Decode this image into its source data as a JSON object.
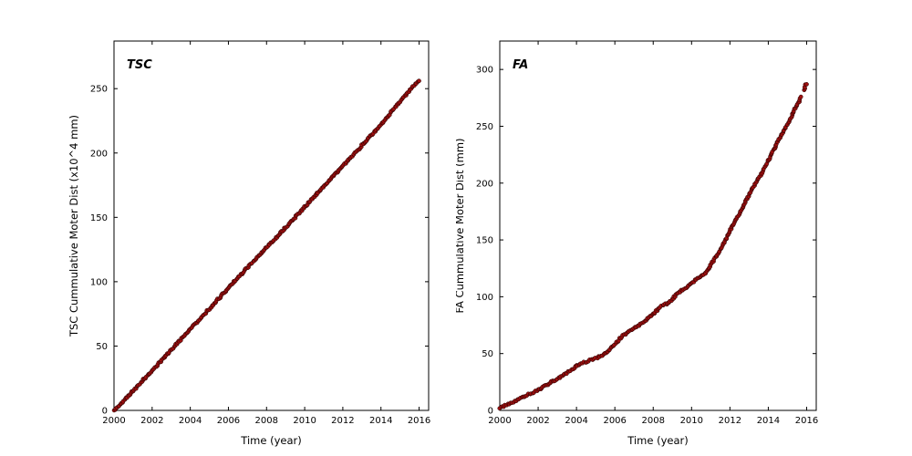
{
  "figure": {
    "background": "#ffffff",
    "marker_color": "#a01010",
    "marker_edge_color": "#200000",
    "axis_color": "#000000"
  },
  "chart_data": [
    {
      "type": "scatter",
      "title": "TSC",
      "xlabel": "Time (year)",
      "ylabel": "TSC Cummulative Moter Dist (x10^4 mm)",
      "xlim": [
        2000,
        2016.5
      ],
      "ylim": [
        0,
        287
      ],
      "xticks": [
        2000,
        2002,
        2004,
        2006,
        2008,
        2010,
        2012,
        2014,
        2016
      ],
      "yticks": [
        0,
        50,
        100,
        150,
        200,
        250
      ],
      "grid": false,
      "legend": null,
      "series": [
        {
          "name": "TSC cumulative motor distance",
          "segments": [
            [
              [
                2000.0,
                0
              ],
              [
                2000.5,
                7
              ],
              [
                2001.0,
                15
              ],
              [
                2001.5,
                23
              ],
              [
                2002.0,
                31
              ],
              [
                2002.5,
                39
              ],
              [
                2003.0,
                47
              ],
              [
                2003.5,
                55
              ],
              [
                2004.0,
                63
              ],
              [
                2004.5,
                71
              ],
              [
                2005.0,
                79
              ],
              [
                2005.5,
                87
              ],
              [
                2006.0,
                95
              ],
              [
                2006.5,
                103
              ],
              [
                2007.0,
                111
              ],
              [
                2007.5,
                119
              ],
              [
                2008.0,
                127
              ],
              [
                2008.5,
                134
              ],
              [
                2009.0,
                142
              ],
              [
                2009.5,
                150
              ],
              [
                2010.0,
                158
              ],
              [
                2010.5,
                166
              ],
              [
                2011.0,
                174
              ],
              [
                2011.5,
                182
              ],
              [
                2012.0,
                190
              ],
              [
                2012.5,
                198
              ],
              [
                2013.0,
                206
              ],
              [
                2013.5,
                214
              ],
              [
                2014.0,
                222
              ],
              [
                2014.5,
                231
              ],
              [
                2015.0,
                240
              ],
              [
                2015.5,
                249
              ],
              [
                2015.9,
                255
              ],
              [
                2016.0,
                256
              ]
            ]
          ]
        }
      ]
    },
    {
      "type": "scatter",
      "title": "FA",
      "xlabel": "Time (year)",
      "ylabel": "FA Cummulative Moter Dist (mm)",
      "xlim": [
        2000,
        2016.5
      ],
      "ylim": [
        0,
        325
      ],
      "xticks": [
        2000,
        2002,
        2004,
        2006,
        2008,
        2010,
        2012,
        2014,
        2016
      ],
      "yticks": [
        0,
        50,
        100,
        150,
        200,
        250,
        300
      ],
      "grid": false,
      "legend": null,
      "series": [
        {
          "name": "FA cumulative motor distance",
          "segments": [
            [
              [
                2000.0,
                2
              ],
              [
                2000.5,
                6
              ],
              [
                2001.0,
                10
              ],
              [
                2001.5,
                14
              ],
              [
                2002.0,
                18
              ],
              [
                2002.5,
                23
              ],
              [
                2003.0,
                28
              ],
              [
                2003.5,
                33
              ],
              [
                2004.0,
                39
              ],
              [
                2004.3,
                42
              ],
              [
                2004.7,
                44
              ],
              [
                2005.0,
                46
              ],
              [
                2005.3,
                48
              ],
              [
                2005.7,
                53
              ],
              [
                2006.0,
                58
              ],
              [
                2006.3,
                64
              ],
              [
                2006.6,
                68
              ],
              [
                2007.0,
                72
              ],
              [
                2007.5,
                78
              ],
              [
                2008.0,
                85
              ],
              [
                2008.3,
                90
              ],
              [
                2008.7,
                94
              ],
              [
                2009.0,
                98
              ],
              [
                2009.3,
                103
              ],
              [
                2009.6,
                107
              ],
              [
                2010.0,
                112
              ],
              [
                2010.3,
                116
              ],
              [
                2010.6,
                119
              ],
              [
                2010.8,
                122
              ],
              [
                2011.0,
                128
              ],
              [
                2011.3,
                136
              ],
              [
                2011.6,
                144
              ],
              [
                2012.0,
                158
              ],
              [
                2012.3,
                168
              ],
              [
                2012.6,
                176
              ],
              [
                2013.0,
                190
              ],
              [
                2013.3,
                199
              ],
              [
                2013.6,
                207
              ],
              [
                2014.0,
                220
              ],
              [
                2014.3,
                230
              ],
              [
                2014.6,
                240
              ],
              [
                2015.0,
                252
              ],
              [
                2015.2,
                258
              ],
              [
                2015.4,
                266
              ],
              [
                2015.6,
                272
              ],
              [
                2015.7,
                276
              ]
            ],
            [
              [
                2015.85,
                282
              ],
              [
                2015.95,
                286
              ],
              [
                2016.0,
                287
              ]
            ]
          ]
        }
      ]
    }
  ]
}
